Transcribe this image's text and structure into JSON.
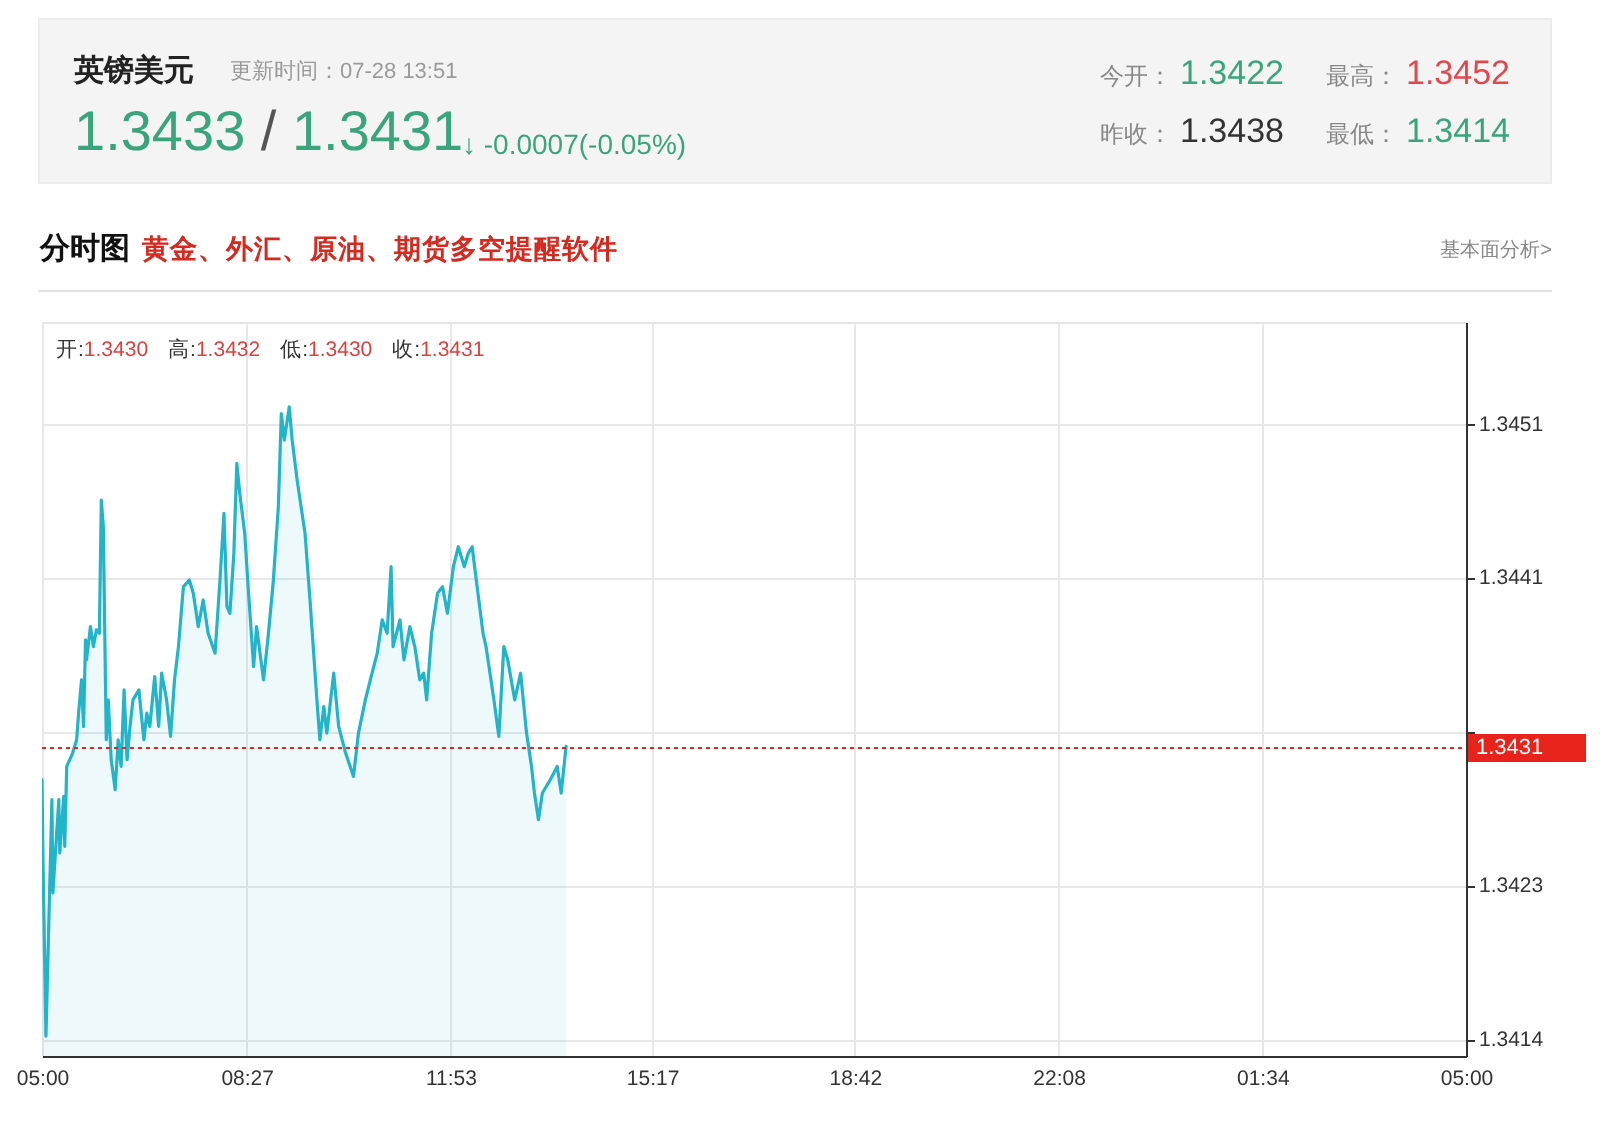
{
  "chart_data": {
    "type": "area",
    "title": "英镑美元",
    "subtitle": "更新时间：07-28 13:51",
    "annotations": [
      "1.3433 / 1.3431",
      "↓ -0.0007(-0.05%)",
      "今开：1.3422",
      "最高：1.3452",
      "昨收：1.3438",
      "最低：1.3414",
      "分时图",
      "黄金、外汇、原油、期货多空提醒软件",
      "基本面分析>",
      "开:1.3430 高:1.3432 低:1.3430 收:1.3431"
    ],
    "x": [
      "--07-28T05:00",
      "--07-28T05:01",
      "--07-28T05:04",
      "--07-28T05:08",
      "--07-28T05:10",
      "--07-28T05:11",
      "--07-28T05:17",
      "--07-28T05:18",
      "--07-28T05:22",
      "--07-28T05:23",
      "--07-28T05:25",
      "--07-28T05:31",
      "--07-28T05:35",
      "--07-28T05:37",
      "--07-28T05:40",
      "--07-28T05:42",
      "--07-28T05:44",
      "--07-28T05:45",
      "--07-28T05:49",
      "--07-28T05:52",
      "--07-28T05:55",
      "--07-28T05:58",
      "--07-28T06:00",
      "--07-28T06:02",
      "--07-28T06:05",
      "--07-28T06:07",
      "--07-28T06:10",
      "--07-28T06:14",
      "--07-28T06:17",
      "--07-28T06:20",
      "--07-28T06:23",
      "--07-28T06:26",
      "--07-28T06:29",
      "--07-28T06:32",
      "--07-28T06:38",
      "--07-28T06:43",
      "--07-28T06:46",
      "--07-28T06:49",
      "--07-28T06:54",
      "--07-28T06:58",
      "--07-28T07:01",
      "--07-28T07:06",
      "--07-28T07:10",
      "--07-28T07:14",
      "--07-28T07:18",
      "--07-28T07:23",
      "--07-28T07:29",
      "--07-28T07:33",
      "--07-28T07:38",
      "--07-28T07:43",
      "--07-28T07:48",
      "--07-28T07:55",
      "--07-28T08:00",
      "--07-28T08:04",
      "--07-28T08:07",
      "--07-28T08:10",
      "--07-28T08:14",
      "--07-28T08:17",
      "--07-28T08:20",
      "--07-28T08:25",
      "--07-28T08:28",
      "--07-28T08:34",
      "--07-28T08:37",
      "--07-28T08:44",
      "--07-28T08:49",
      "--07-28T08:54",
      "--07-28T08:59",
      "--07-28T09:02",
      "--07-28T09:05",
      "--07-28T09:10",
      "--07-28T09:13",
      "--07-28T09:18",
      "--07-28T09:26",
      "--07-28T09:31",
      "--07-28T09:38",
      "--07-28T09:41",
      "--07-28T09:45",
      "--07-28T09:48",
      "--07-28T09:55",
      "--07-28T10:00",
      "--07-28T10:07",
      "--07-28T10:15",
      "--07-28T10:20",
      "--07-28T10:27",
      "--07-28T10:32",
      "--07-28T10:39",
      "--07-28T10:44",
      "--07-28T10:49",
      "--07-28T10:53",
      "--07-28T10:55",
      "--07-28T11:02",
      "--07-28T11:06",
      "--07-28T11:12",
      "--07-28T11:17",
      "--07-28T11:22",
      "--07-28T11:26",
      "--07-28T11:29",
      "--07-28T11:34",
      "--07-28T11:40",
      "--07-28T11:45",
      "--07-28T11:50",
      "--07-28T11:56",
      "--07-28T12:01",
      "--07-28T12:07",
      "--07-28T12:11",
      "--07-28T12:15",
      "--07-28T12:20",
      "--07-28T12:26",
      "--07-28T12:29",
      "--07-28T12:37",
      "--07-28T12:42",
      "--07-28T12:47",
      "--07-28T12:51",
      "--07-28T12:58",
      "--07-28T13:04",
      "--07-28T13:10",
      "--07-28T13:15",
      "--07-28T13:18",
      "--07-28T13:22",
      "--07-28T13:26",
      "--07-28T13:34",
      "--07-28T13:41",
      "--07-28T13:45",
      "--07-28T13:50"
    ],
    "series": [
      {
        "color": "#22b4c8",
        "values": [
          1.34291,
          1.34243,
          1.34137,
          1.34231,
          1.34279,
          1.34223,
          1.34279,
          1.34247,
          1.34281,
          1.34251,
          1.34299,
          1.34307,
          1.34315,
          1.34331,
          1.34351,
          1.34323,
          1.34375,
          1.34363,
          1.34383,
          1.34371,
          1.34381,
          1.34379,
          1.34459,
          1.34443,
          1.34315,
          1.34339,
          1.34303,
          1.34285,
          1.34315,
          1.34299,
          1.34345,
          1.34303,
          1.34323,
          1.34339,
          1.34345,
          1.34315,
          1.34331,
          1.34323,
          1.34353,
          1.34323,
          1.34355,
          1.34339,
          1.34317,
          1.34351,
          1.34371,
          1.34407,
          1.34411,
          1.34403,
          1.34383,
          1.34399,
          1.34379,
          1.34367,
          1.34411,
          1.34451,
          1.34395,
          1.34391,
          1.34427,
          1.34481,
          1.34463,
          1.34439,
          1.34411,
          1.34359,
          1.34383,
          1.34351,
          1.34379,
          1.34411,
          1.34455,
          1.34511,
          1.34495,
          1.34515,
          1.34495,
          1.34471,
          1.34439,
          1.34399,
          1.34339,
          1.34315,
          1.34335,
          1.34319,
          1.34355,
          1.34323,
          1.34307,
          1.34293,
          1.34319,
          1.34339,
          1.34351,
          1.34367,
          1.34387,
          1.34379,
          1.34419,
          1.34371,
          1.34387,
          1.34363,
          1.34383,
          1.34371,
          1.34351,
          1.34355,
          1.34339,
          1.34379,
          1.34403,
          1.34407,
          1.34391,
          1.34419,
          1.34431,
          1.34419,
          1.34427,
          1.34431,
          1.34407,
          1.34379,
          1.34371,
          1.34339,
          1.34317,
          1.34371,
          1.34363,
          1.34339,
          1.34355,
          1.34319,
          1.34299,
          1.34283,
          1.34267,
          1.34283,
          1.34291,
          1.34299,
          1.34283,
          1.34311
        ]
      }
    ],
    "xlim": [
      "--07-28T05:00",
      "--07-29T05:00"
    ],
    "xticks": [
      {
        "value": "--07-28T05:00",
        "label": "05:00"
      },
      {
        "value": "--07-28T08:27",
        "label": "08:27"
      },
      {
        "value": "--07-28T11:53",
        "label": "11:53"
      },
      {
        "value": "--07-28T15:17",
        "label": "15:17"
      },
      {
        "value": "--07-28T18:42",
        "label": "18:42"
      },
      {
        "value": "--07-28T22:08",
        "label": "22:08"
      },
      {
        "value": "--07-29T01:34",
        "label": "01:34"
      },
      {
        "value": "--07-29T05:00",
        "label": "05:00"
      }
    ],
    "ylim": [
      1.34125,
      1.34566
    ],
    "yticks": [
      {
        "value": 1.34135,
        "label": "1.3414"
      },
      {
        "value": 1.342275,
        "label": "1.3423"
      },
      {
        "value": 1.3432,
        "label": null
      },
      {
        "value": 1.344125,
        "label": "1.3441"
      },
      {
        "value": 1.34505,
        "label": "1.3451"
      }
    ],
    "grid": true,
    "ref_lines": [
      {
        "axis": "y",
        "value": 1.3431,
        "label": "1.3431",
        "color": "#e8231b",
        "line_style": "dotted"
      }
    ]
  }
}
